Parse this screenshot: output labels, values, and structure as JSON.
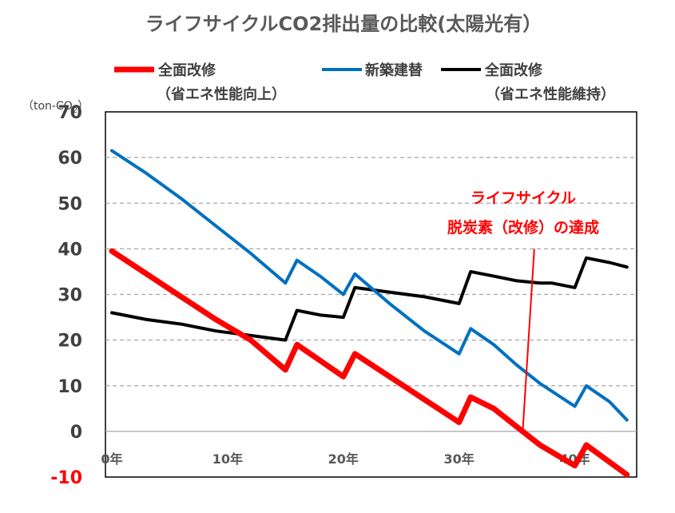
{
  "chart_data": {
    "type": "line",
    "title": "ライフサイクルCO2排出量の比較(太陽光有）",
    "unit_label_prefix": "（ton-CO",
    "unit_label_sub": "2",
    "unit_label_suffix": "）",
    "xlim": [
      0,
      45
    ],
    "ylim": [
      -10,
      70
    ],
    "y_ticks": [
      70,
      60,
      50,
      40,
      30,
      20,
      10,
      0,
      -10
    ],
    "x_ticks": [
      {
        "value": 0,
        "label": "0年"
      },
      {
        "value": 10,
        "label": "10年"
      },
      {
        "value": 20,
        "label": "20年"
      },
      {
        "value": 30,
        "label": "30年"
      },
      {
        "value": 40,
        "label": "40年"
      }
    ],
    "gridlines": [
      10,
      20,
      30,
      40,
      50,
      60
    ],
    "series": [
      {
        "name": "全面改修",
        "subname": "（省エネ性能向上）",
        "color": "#ff0000",
        "width": 7,
        "points": [
          [
            0,
            39.5
          ],
          [
            3,
            34.5
          ],
          [
            6,
            29.5
          ],
          [
            9,
            24.5
          ],
          [
            12,
            20
          ],
          [
            15,
            13.5
          ],
          [
            16,
            19
          ],
          [
            20,
            12
          ],
          [
            21,
            17
          ],
          [
            24,
            12
          ],
          [
            27,
            7
          ],
          [
            30,
            2
          ],
          [
            31,
            7.5
          ],
          [
            33,
            5
          ],
          [
            35,
            1
          ],
          [
            37,
            -3
          ],
          [
            40,
            -7.5
          ],
          [
            41,
            -3
          ],
          [
            44.5,
            -9.5
          ]
        ]
      },
      {
        "name": "新築建替",
        "subname": "",
        "color": "#0070c0",
        "width": 4,
        "points": [
          [
            0,
            61.5
          ],
          [
            3,
            56.5
          ],
          [
            6,
            51
          ],
          [
            9,
            45
          ],
          [
            12,
            39
          ],
          [
            15,
            32.5
          ],
          [
            16,
            37.5
          ],
          [
            18,
            34
          ],
          [
            20,
            30
          ],
          [
            21,
            34.5
          ],
          [
            24,
            28
          ],
          [
            27,
            22
          ],
          [
            30,
            17
          ],
          [
            31,
            22.5
          ],
          [
            33,
            19
          ],
          [
            35,
            14.5
          ],
          [
            37,
            10.5
          ],
          [
            40,
            5.5
          ],
          [
            41,
            10
          ],
          [
            43,
            6.5
          ],
          [
            44.5,
            2.5
          ]
        ]
      },
      {
        "name": "全面改修",
        "subname": "（省エネ性能維持）",
        "color": "#000000",
        "width": 4,
        "points": [
          [
            0,
            26
          ],
          [
            3,
            24.5
          ],
          [
            6,
            23.5
          ],
          [
            9,
            22
          ],
          [
            12,
            21
          ],
          [
            15,
            20
          ],
          [
            16,
            26.5
          ],
          [
            18,
            25.5
          ],
          [
            20,
            25
          ],
          [
            21,
            31.5
          ],
          [
            24,
            30.5
          ],
          [
            27,
            29.5
          ],
          [
            30,
            28
          ],
          [
            31,
            35
          ],
          [
            33,
            34
          ],
          [
            35,
            33
          ],
          [
            37,
            32.5
          ],
          [
            38,
            32.5
          ],
          [
            40,
            31.5
          ],
          [
            41,
            38
          ],
          [
            43,
            37
          ],
          [
            44.5,
            36
          ]
        ]
      }
    ],
    "annotation": {
      "line1": "ライフサイクル",
      "line2": "脱炭素（改修）の達成",
      "color": "#ff0000",
      "arrow_from": [
        36.5,
        40
      ],
      "arrow_to": [
        35.5,
        0
      ]
    }
  }
}
